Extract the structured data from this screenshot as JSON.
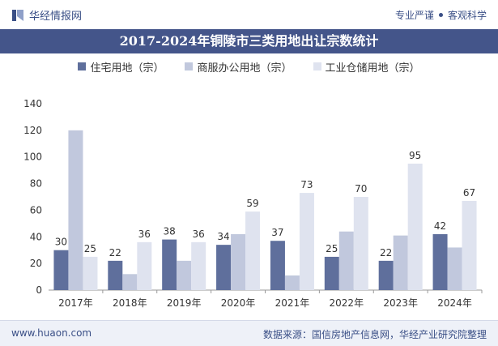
{
  "header": {
    "brand": "华经情报网",
    "tagline_left": "专业严谨",
    "tagline_right": "客观科学"
  },
  "colors": {
    "brand": "#3a4f86",
    "title_bg": "#44558a",
    "series": [
      "#5f6f9c",
      "#c1c8dd",
      "#dfe3ef"
    ]
  },
  "chart_data": {
    "type": "bar",
    "title": "2017-2024年铜陵市三类用地出让宗数统计",
    "categories": [
      "2017年",
      "2018年",
      "2019年",
      "2020年",
      "2021年",
      "2022年",
      "2023年",
      "2024年"
    ],
    "series": [
      {
        "name": "住宅用地（宗）",
        "values": [
          30,
          22,
          38,
          34,
          37,
          25,
          22,
          42
        ],
        "labeled": true
      },
      {
        "name": "商服办公用地（宗）",
        "values": [
          120,
          12,
          22,
          42,
          11,
          44,
          41,
          32
        ],
        "labeled": false
      },
      {
        "name": "工业仓储用地（宗）",
        "values": [
          25,
          36,
          36,
          59,
          73,
          70,
          95,
          67
        ],
        "labeled": true
      }
    ],
    "ylim": [
      0,
      140
    ],
    "yticks": [
      "0",
      "20",
      "40",
      "60",
      "80",
      "100",
      "120",
      "140"
    ],
    "grid": false,
    "legend_position": "top"
  },
  "footer": {
    "website": "www.huaon.com",
    "source": "数据来源：国信房地产信息网，华经产业研究院整理"
  }
}
